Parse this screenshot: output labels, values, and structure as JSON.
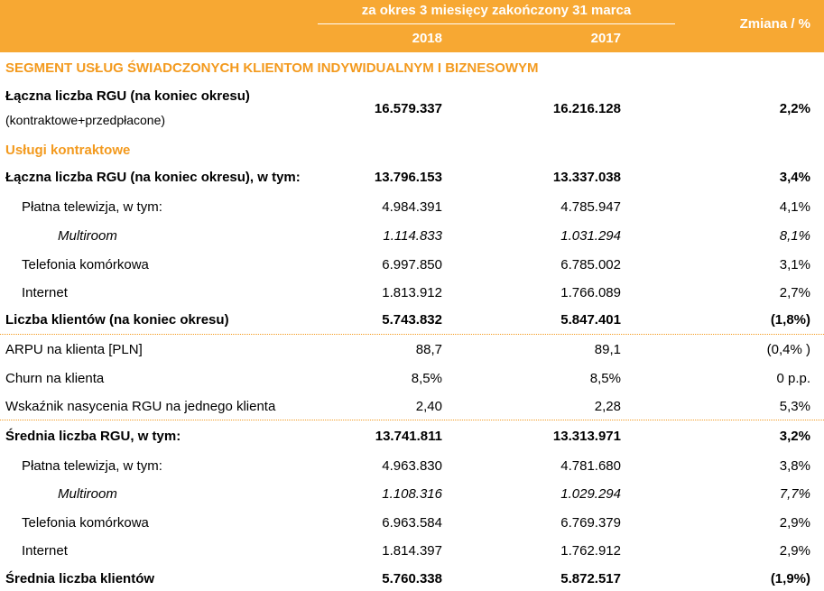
{
  "header": {
    "period": "za okres 3 miesięcy zakończony 31 marca",
    "year1": "2018",
    "year2": "2017",
    "change": "Zmiana / %"
  },
  "segment_title": "SEGMENT USŁUG ŚWIADCZONYCH KLIENTOM INDYWIDUALNYM I BIZNESOWYM",
  "total_rgu": {
    "label": "Łączna liczba RGU (na koniec okresu)",
    "sublabel": "(kontraktowe+przedpłacone)",
    "v2018": "16.579.337",
    "v2017": "16.216.128",
    "change": "2,2%"
  },
  "contract_title": "Usługi kontraktowe",
  "rows": [
    {
      "label": "Łączna liczba RGU (na koniec okresu), w tym:",
      "v2018": "13.796.153",
      "v2017": "13.337.038",
      "change": "3,4%"
    },
    {
      "label": "Płatna telewizja, w tym:",
      "v2018": "4.984.391",
      "v2017": "4.785.947",
      "change": "4,1%"
    },
    {
      "label": "Multiroom",
      "v2018": "1.114.833",
      "v2017": "1.031.294",
      "change": "8,1%"
    },
    {
      "label": "Telefonia komórkowa",
      "v2018": "6.997.850",
      "v2017": "6.785.002",
      "change": "3,1%"
    },
    {
      "label": "Internet",
      "v2018": "1.813.912",
      "v2017": "1.766.089",
      "change": "2,7%"
    },
    {
      "label": "Liczba klientów (na koniec okresu)",
      "v2018": "5.743.832",
      "v2017": "5.847.401",
      "change": "(1,8%)"
    },
    {
      "label": "ARPU na klienta [PLN]",
      "v2018": "88,7",
      "v2017": "89,1",
      "change": "(0,4% )"
    },
    {
      "label": "Churn na klienta",
      "v2018": "8,5%",
      "v2017": "8,5%",
      "change": "0 p.p."
    },
    {
      "label": "Wskaźnik nasycenia RGU na jednego klienta",
      "v2018": "2,40",
      "v2017": "2,28",
      "change": "5,3%"
    },
    {
      "label": "Średnia liczba RGU, w tym:",
      "v2018": "13.741.811",
      "v2017": "13.313.971",
      "change": "3,2%"
    },
    {
      "label": "Płatna telewizja, w tym:",
      "v2018": "4.963.830",
      "v2017": "4.781.680",
      "change": "3,8%"
    },
    {
      "label": "Multiroom",
      "v2018": "1.108.316",
      "v2017": "1.029.294",
      "change": "7,7%"
    },
    {
      "label": "Telefonia komórkowa",
      "v2018": "6.963.584",
      "v2017": "6.769.379",
      "change": "2,9%"
    },
    {
      "label": "Internet",
      "v2018": "1.814.397",
      "v2017": "1.762.912",
      "change": "2,9%"
    },
    {
      "label": "Średnia liczba klientów",
      "v2018": "5.760.338",
      "v2017": "5.872.517",
      "change": "(1,9%)"
    }
  ]
}
